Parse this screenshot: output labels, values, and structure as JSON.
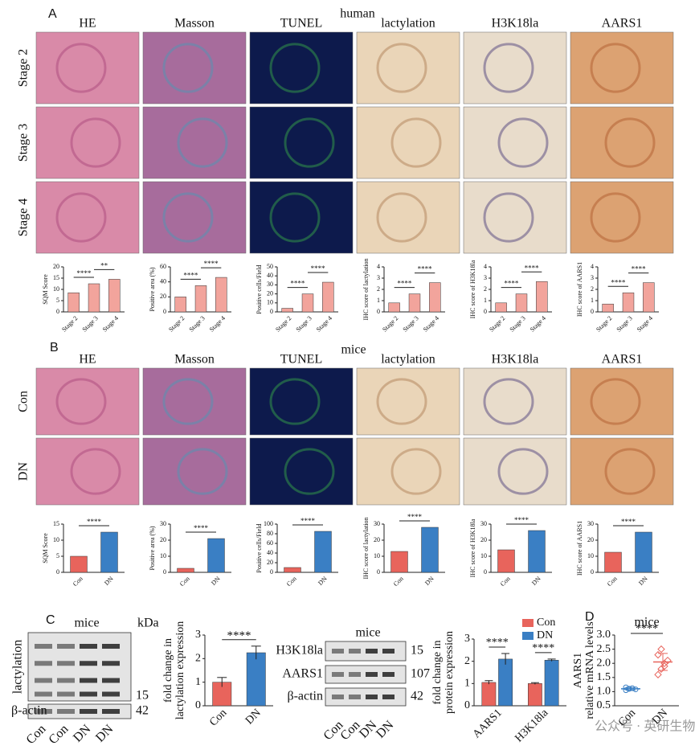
{
  "panels": {
    "A": {
      "letter": "A",
      "title": "human",
      "columns": [
        "HE",
        "Masson",
        "TUNEL",
        "lactylation",
        "H3K18la",
        "AARS1"
      ],
      "rows": [
        "Stage 2",
        "Stage 3",
        "Stage 4"
      ]
    },
    "B": {
      "letter": "B",
      "title": "mice",
      "columns": [
        "HE",
        "Masson",
        "TUNEL",
        "lactylation",
        "H3K18la",
        "AARS1"
      ],
      "rows": [
        "Con",
        "DN"
      ]
    },
    "C": {
      "letter": "C",
      "blot1": {
        "title": "mice",
        "unit": "kDa",
        "bands": [
          {
            "label": "lactylation",
            "kda": 15
          },
          {
            "label": "β-actin",
            "kda": 42
          }
        ],
        "lanes": [
          "Con",
          "Con",
          "DN",
          "DN"
        ]
      },
      "blot2": {
        "title": "mice",
        "bands": [
          {
            "label": "H3K18la",
            "kda": 15
          },
          {
            "label": "AARS1",
            "kda": 107
          },
          {
            "label": "β-actin",
            "kda": 42
          }
        ],
        "lanes": [
          "Con",
          "Con",
          "DN",
          "DN"
        ]
      }
    },
    "D": {
      "letter": "D"
    }
  },
  "watermark": "公众号 · 英研生物",
  "chart_data": [
    {
      "type": "bar",
      "y_label": "SQM Score",
      "categories": [
        "Stage 2",
        "Stage 3",
        "Stage 4"
      ],
      "values": [
        8.5,
        12.5,
        14.5
      ],
      "colors": [
        "#f2a49c",
        "#f2a49c",
        "#f2a49c"
      ],
      "ylim": [
        0,
        20
      ],
      "yticks": [
        0,
        5,
        10,
        15,
        20
      ],
      "significance": [
        "****",
        "**"
      ]
    },
    {
      "type": "bar",
      "y_label": "Positive area (%)",
      "categories": [
        "Stage 2",
        "Stage 3",
        "Stage 4"
      ],
      "values": [
        20,
        35,
        46
      ],
      "colors": [
        "#f2a49c",
        "#f2a49c",
        "#f2a49c"
      ],
      "ylim": [
        0,
        60
      ],
      "yticks": [
        0,
        20,
        40,
        60
      ],
      "significance": [
        "****",
        "****"
      ]
    },
    {
      "type": "bar",
      "y_label": "Positive cells/Field",
      "categories": [
        "Stage 2",
        "Stage 3",
        "Stage 4"
      ],
      "values": [
        4,
        20,
        33
      ],
      "colors": [
        "#f2a49c",
        "#f2a49c",
        "#f2a49c"
      ],
      "ylim": [
        0,
        50
      ],
      "yticks": [
        0,
        10,
        20,
        30,
        40,
        50
      ],
      "significance": [
        "****",
        "****"
      ]
    },
    {
      "type": "bar",
      "y_label": "IHC score of lactylation",
      "categories": [
        "Stage 2",
        "Stage 3",
        "Stage 4"
      ],
      "values": [
        0.8,
        1.6,
        2.6
      ],
      "colors": [
        "#f2a49c",
        "#f2a49c",
        "#f2a49c"
      ],
      "ylim": [
        0,
        4
      ],
      "yticks": [
        0,
        1,
        2,
        3,
        4
      ],
      "significance": [
        "****",
        "****"
      ]
    },
    {
      "type": "bar",
      "y_label": "IHC score of H3K18la",
      "categories": [
        "Stage 2",
        "Stage 3",
        "Stage 4"
      ],
      "values": [
        0.8,
        1.6,
        2.7
      ],
      "colors": [
        "#f2a49c",
        "#f2a49c",
        "#f2a49c"
      ],
      "ylim": [
        0,
        4
      ],
      "yticks": [
        0,
        1,
        2,
        3,
        4
      ],
      "significance": [
        "****",
        "****"
      ]
    },
    {
      "type": "bar",
      "y_label": "IHC score of AARS1",
      "categories": [
        "Stage 2",
        "Stage 3",
        "Stage 4"
      ],
      "values": [
        0.7,
        1.7,
        2.6
      ],
      "colors": [
        "#f2a49c",
        "#f2a49c",
        "#f2a49c"
      ],
      "ylim": [
        0,
        4
      ],
      "yticks": [
        0,
        1,
        2,
        3,
        4
      ],
      "significance": [
        "****",
        "****"
      ]
    },
    {
      "type": "bar",
      "y_label": "SQM Score",
      "categories": [
        "Con",
        "DN"
      ],
      "values": [
        5,
        12.5
      ],
      "colors": [
        "#e8645c",
        "#3a7fc4"
      ],
      "ylim": [
        0,
        15
      ],
      "yticks": [
        0,
        5,
        10,
        15
      ],
      "significance": [
        "****"
      ]
    },
    {
      "type": "bar",
      "y_label": "Positive area (%)",
      "categories": [
        "Con",
        "DN"
      ],
      "values": [
        2.5,
        21
      ],
      "colors": [
        "#e8645c",
        "#3a7fc4"
      ],
      "ylim": [
        0,
        30
      ],
      "yticks": [
        0,
        10,
        20,
        30
      ],
      "significance": [
        "****"
      ]
    },
    {
      "type": "bar",
      "y_label": "Positive cells/Field",
      "categories": [
        "Con",
        "DN"
      ],
      "values": [
        10,
        85
      ],
      "colors": [
        "#e8645c",
        "#3a7fc4"
      ],
      "ylim": [
        0,
        100
      ],
      "yticks": [
        0,
        20,
        40,
        60,
        80,
        100
      ],
      "significance": [
        "****"
      ]
    },
    {
      "type": "bar",
      "y_label": "IHC score of lactylation",
      "categories": [
        "Con",
        "DN"
      ],
      "values": [
        13,
        28
      ],
      "colors": [
        "#e8645c",
        "#3a7fc4"
      ],
      "ylim": [
        0,
        30
      ],
      "yticks": [
        0,
        10,
        20,
        30
      ],
      "significance": [
        "****"
      ]
    },
    {
      "type": "bar",
      "y_label": "IHC score of H3K18la",
      "categories": [
        "Con",
        "DN"
      ],
      "values": [
        14,
        26
      ],
      "colors": [
        "#e8645c",
        "#3a7fc4"
      ],
      "ylim": [
        0,
        30
      ],
      "yticks": [
        0,
        10,
        20,
        30
      ],
      "significance": [
        "****"
      ]
    },
    {
      "type": "bar",
      "y_label": "IHC score of AARS1",
      "categories": [
        "Con",
        "DN"
      ],
      "values": [
        12.5,
        25
      ],
      "colors": [
        "#e8645c",
        "#3a7fc4"
      ],
      "ylim": [
        0,
        30
      ],
      "yticks": [
        0,
        10,
        20,
        30
      ],
      "significance": [
        "****"
      ]
    },
    {
      "type": "bar",
      "y_label": [
        "fold change in",
        "lactylation expression"
      ],
      "categories": [
        "Con",
        "DN"
      ],
      "values": [
        1.0,
        2.25
      ],
      "errors": [
        0.2,
        0.28
      ],
      "colors": [
        "#e8645c",
        "#3a7fc4"
      ],
      "ylim": [
        0,
        3
      ],
      "yticks": [
        0,
        1,
        2,
        3
      ],
      "significance": [
        "****"
      ]
    },
    {
      "type": "grouped_bar",
      "y_label": [
        "fold change in",
        "protein expression"
      ],
      "categories": [
        "AARS1",
        "H3K18la"
      ],
      "series": [
        {
          "name": "Con",
          "color": "#e8645c",
          "values": [
            1.05,
            1.0
          ],
          "errors": [
            0.08,
            0.04
          ]
        },
        {
          "name": "DN",
          "color": "#3a7fc4",
          "values": [
            2.1,
            2.05
          ],
          "errors": [
            0.25,
            0.05
          ]
        }
      ],
      "ylim": [
        0,
        3
      ],
      "yticks": [
        0,
        1,
        2,
        3
      ],
      "significance": [
        "****",
        "****"
      ],
      "legend": "upper right"
    },
    {
      "type": "dot",
      "title": "mice",
      "y_label": [
        "AARS1",
        "relative mRNA levels"
      ],
      "categories": [
        "Con",
        "DN"
      ],
      "points": [
        [
          1.05,
          1.1,
          1.12,
          1.08,
          1.15,
          1.1
        ],
        [
          1.6,
          1.8,
          2.0,
          2.1,
          2.3,
          2.5,
          1.9
        ]
      ],
      "means": [
        1.1,
        2.05
      ],
      "errors": [
        0.05,
        0.3
      ],
      "colors": [
        "#3a7fc4",
        "#e8645c"
      ],
      "ylim": [
        0.5,
        3.0
      ],
      "yticks": [
        0.5,
        {
          "value": 1,
          "label": "1.0"
        },
        1.5,
        {
          "value": 2,
          "label": "2.0"
        },
        2.5,
        {
          "value": 3,
          "label": "3.0"
        }
      ],
      "significance": [
        "****"
      ]
    }
  ]
}
